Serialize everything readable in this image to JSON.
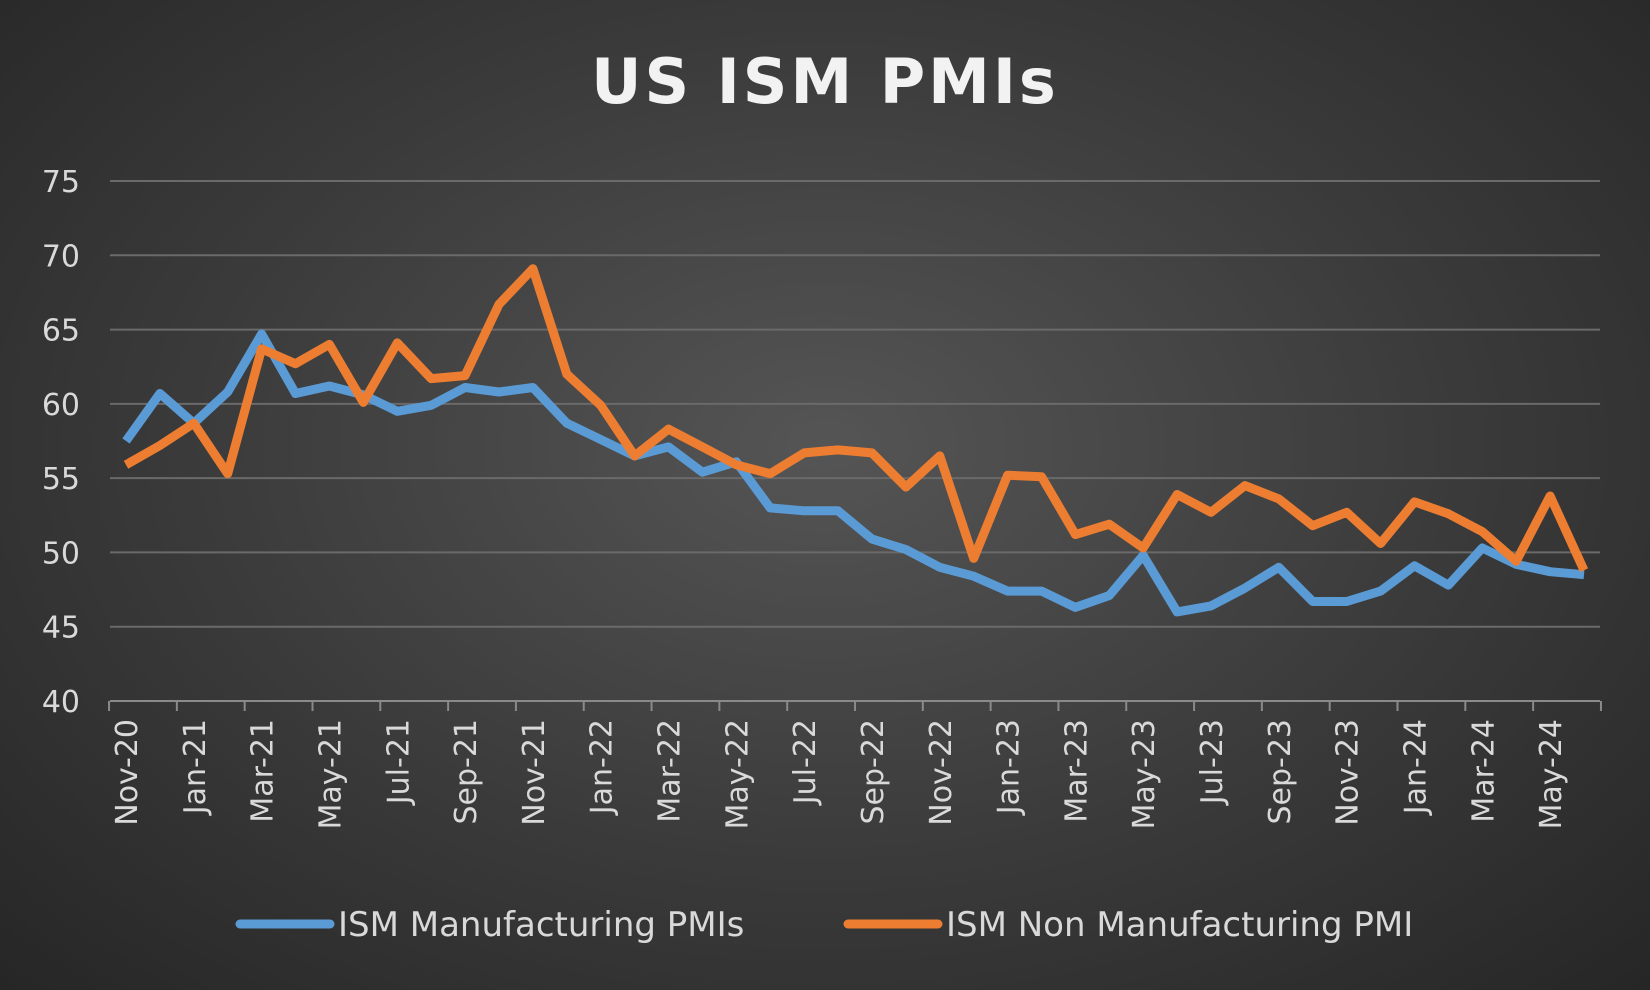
{
  "chart_data": {
    "type": "line",
    "title": "US ISM PMIs",
    "xlabel": "",
    "ylabel": "",
    "ylim": [
      40,
      75
    ],
    "yticks": [
      40,
      45,
      50,
      55,
      60,
      65,
      70,
      75
    ],
    "grid": true,
    "legend": "bottom",
    "x": [
      "Nov-20",
      "Dec-20",
      "Jan-21",
      "Feb-21",
      "Mar-21",
      "Apr-21",
      "May-21",
      "Jun-21",
      "Jul-21",
      "Aug-21",
      "Sep-21",
      "Oct-21",
      "Nov-21",
      "Dec-21",
      "Jan-22",
      "Feb-22",
      "Mar-22",
      "Apr-22",
      "May-22",
      "Jun-22",
      "Jul-22",
      "Aug-22",
      "Sep-22",
      "Oct-22",
      "Nov-22",
      "Dec-22",
      "Jan-23",
      "Feb-23",
      "Mar-23",
      "Apr-23",
      "May-23",
      "Jun-23",
      "Jul-23",
      "Aug-23",
      "Sep-23",
      "Oct-23",
      "Nov-23",
      "Dec-23",
      "Jan-24",
      "Feb-24",
      "Mar-24",
      "Apr-24",
      "May-24",
      "Jun-24"
    ],
    "xtick_labels": [
      "Nov-20",
      "Jan-21",
      "Mar-21",
      "May-21",
      "Jul-21",
      "Sep-21",
      "Nov-21",
      "Jan-22",
      "Mar-22",
      "May-22",
      "Jul-22",
      "Sep-22",
      "Nov-22",
      "Jan-23",
      "Mar-23",
      "May-23",
      "Jul-23",
      "Sep-23",
      "Nov-23",
      "Jan-24",
      "Mar-24",
      "May-24"
    ],
    "series": [
      {
        "name": "ISM Manufacturing PMIs",
        "color": "#5B9BD5",
        "values": [
          57.5,
          60.7,
          58.7,
          60.8,
          64.7,
          60.7,
          61.2,
          60.6,
          59.5,
          59.9,
          61.1,
          60.8,
          61.1,
          58.7,
          57.6,
          56.5,
          57.1,
          55.4,
          56.1,
          53.0,
          52.8,
          52.8,
          50.9,
          50.2,
          49.0,
          48.4,
          47.4,
          47.4,
          46.3,
          47.1,
          49.8,
          46.0,
          46.4,
          47.6,
          49.0,
          46.7,
          46.7,
          47.4,
          49.1,
          47.8,
          50.3,
          49.2,
          48.7,
          48.5
        ]
      },
      {
        "name": "ISM Non Manufacturing PMI",
        "color": "#ED7D31",
        "values": [
          55.9,
          57.2,
          58.7,
          55.3,
          63.7,
          62.7,
          64.0,
          60.1,
          64.1,
          61.7,
          61.9,
          66.7,
          69.1,
          62.0,
          59.9,
          56.5,
          58.3,
          57.1,
          55.9,
          55.3,
          56.7,
          56.9,
          56.7,
          54.4,
          56.5,
          49.6,
          55.2,
          55.1,
          51.2,
          51.9,
          50.3,
          53.9,
          52.7,
          54.5,
          53.6,
          51.8,
          52.7,
          50.6,
          53.4,
          52.6,
          51.4,
          49.4,
          53.8,
          48.8
        ]
      }
    ]
  }
}
